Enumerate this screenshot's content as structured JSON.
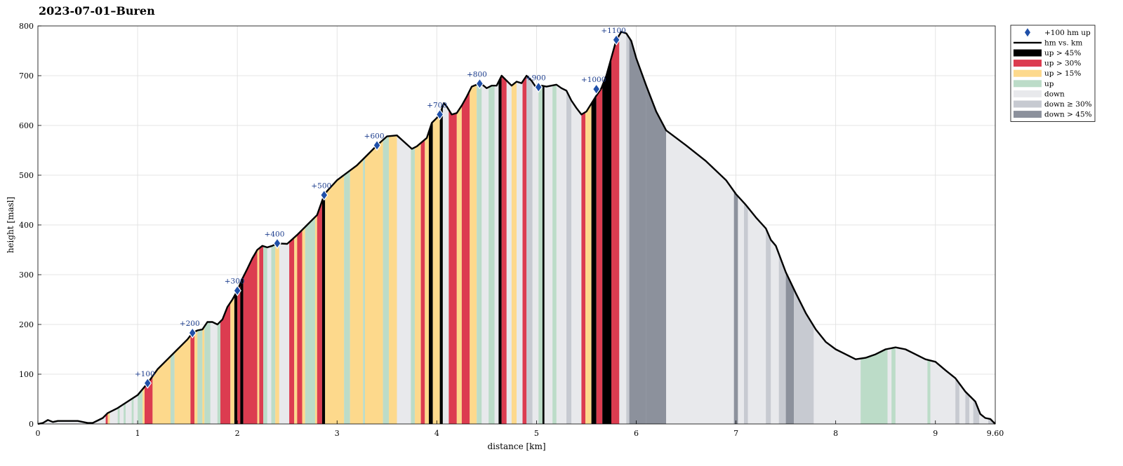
{
  "chart_data": {
    "type": "area",
    "title": "2023-07-01–Buren",
    "xlabel": "distance [km]",
    "ylabel": "height [masl]",
    "xlim": [
      0,
      9.6
    ],
    "ylim": [
      0,
      800
    ],
    "x_ticks": [
      "0",
      "1",
      "2",
      "3",
      "4",
      "5",
      "6",
      "7",
      "8",
      "9",
      "9.60"
    ],
    "x_tick_values": [
      0,
      1,
      2,
      3,
      4,
      5,
      6,
      7,
      8,
      9,
      9.6
    ],
    "y_ticks": [
      "0",
      "100",
      "200",
      "300",
      "400",
      "500",
      "600",
      "700",
      "800"
    ],
    "y_tick_values": [
      0,
      100,
      200,
      300,
      400,
      500,
      600,
      700,
      800
    ],
    "grid": true,
    "legend_position": "outside-top-right",
    "legend": [
      {
        "label": "+100 hm up",
        "kind": "marker",
        "color": "#1f4fa8"
      },
      {
        "label": "hm vs. km",
        "kind": "line",
        "color": "#000000"
      },
      {
        "label": "up > 45%",
        "kind": "patch",
        "color": "#000000"
      },
      {
        "label": "up > 30%",
        "kind": "patch",
        "color": "#dc3c50"
      },
      {
        "label": "up > 15%",
        "kind": "patch",
        "color": "#fdd98c"
      },
      {
        "label": "up",
        "kind": "patch",
        "color": "#bcdcc8"
      },
      {
        "label": "down",
        "kind": "patch",
        "color": "#e8e9ec"
      },
      {
        "label": "down ≥ 30%",
        "kind": "patch",
        "color": "#c7cad1"
      },
      {
        "label": "down > 45%",
        "kind": "patch",
        "color": "#8c919c"
      }
    ],
    "profile": [
      [
        0,
        0
      ],
      [
        0.05,
        2
      ],
      [
        0.1,
        8
      ],
      [
        0.15,
        4
      ],
      [
        0.2,
        6
      ],
      [
        0.3,
        6
      ],
      [
        0.4,
        6
      ],
      [
        0.5,
        2
      ],
      [
        0.55,
        2
      ],
      [
        0.6,
        7
      ],
      [
        0.65,
        12
      ],
      [
        0.7,
        22
      ],
      [
        0.8,
        32
      ],
      [
        0.9,
        45
      ],
      [
        1.0,
        58
      ],
      [
        1.1,
        82
      ],
      [
        1.2,
        110
      ],
      [
        1.3,
        130
      ],
      [
        1.4,
        150
      ],
      [
        1.5,
        170
      ],
      [
        1.55,
        183
      ],
      [
        1.6,
        188
      ],
      [
        1.65,
        190
      ],
      [
        1.7,
        205
      ],
      [
        1.75,
        205
      ],
      [
        1.8,
        200
      ],
      [
        1.85,
        210
      ],
      [
        1.9,
        235
      ],
      [
        1.95,
        250
      ],
      [
        2.0,
        268
      ],
      [
        2.05,
        292
      ],
      [
        2.1,
        312
      ],
      [
        2.15,
        333
      ],
      [
        2.2,
        350
      ],
      [
        2.25,
        358
      ],
      [
        2.3,
        355
      ],
      [
        2.35,
        358
      ],
      [
        2.4,
        363
      ],
      [
        2.5,
        362
      ],
      [
        2.6,
        380
      ],
      [
        2.7,
        400
      ],
      [
        2.8,
        420
      ],
      [
        2.87,
        460
      ],
      [
        2.9,
        468
      ],
      [
        3.0,
        490
      ],
      [
        3.1,
        505
      ],
      [
        3.2,
        520
      ],
      [
        3.3,
        540
      ],
      [
        3.4,
        560
      ],
      [
        3.5,
        578
      ],
      [
        3.6,
        580
      ],
      [
        3.7,
        562
      ],
      [
        3.75,
        553
      ],
      [
        3.8,
        558
      ],
      [
        3.9,
        575
      ],
      [
        3.95,
        605
      ],
      [
        4.0,
        615
      ],
      [
        4.03,
        622
      ],
      [
        4.07,
        645
      ],
      [
        4.1,
        638
      ],
      [
        4.15,
        622
      ],
      [
        4.2,
        625
      ],
      [
        4.25,
        640
      ],
      [
        4.3,
        658
      ],
      [
        4.35,
        678
      ],
      [
        4.4,
        682
      ],
      [
        4.45,
        683
      ],
      [
        4.5,
        675
      ],
      [
        4.55,
        680
      ],
      [
        4.6,
        680
      ],
      [
        4.65,
        700
      ],
      [
        4.7,
        690
      ],
      [
        4.75,
        680
      ],
      [
        4.8,
        688
      ],
      [
        4.85,
        685
      ],
      [
        4.9,
        700
      ],
      [
        4.95,
        690
      ],
      [
        5.0,
        675
      ],
      [
        5.05,
        680
      ],
      [
        5.1,
        678
      ],
      [
        5.15,
        680
      ],
      [
        5.2,
        682
      ],
      [
        5.25,
        675
      ],
      [
        5.3,
        670
      ],
      [
        5.35,
        650
      ],
      [
        5.4,
        635
      ],
      [
        5.45,
        622
      ],
      [
        5.5,
        628
      ],
      [
        5.6,
        660
      ],
      [
        5.65,
        675
      ],
      [
        5.7,
        700
      ],
      [
        5.8,
        772
      ],
      [
        5.85,
        788
      ],
      [
        5.9,
        785
      ],
      [
        5.95,
        770
      ],
      [
        6.0,
        735
      ],
      [
        6.1,
        680
      ],
      [
        6.2,
        628
      ],
      [
        6.3,
        590
      ],
      [
        6.5,
        560
      ],
      [
        6.7,
        528
      ],
      [
        6.9,
        490
      ],
      [
        7.0,
        462
      ],
      [
        7.1,
        440
      ],
      [
        7.2,
        415
      ],
      [
        7.3,
        393
      ],
      [
        7.35,
        370
      ],
      [
        7.4,
        358
      ],
      [
        7.5,
        305
      ],
      [
        7.6,
        263
      ],
      [
        7.7,
        223
      ],
      [
        7.8,
        190
      ],
      [
        7.9,
        165
      ],
      [
        8.0,
        150
      ],
      [
        8.1,
        140
      ],
      [
        8.2,
        130
      ],
      [
        8.3,
        133
      ],
      [
        8.4,
        140
      ],
      [
        8.5,
        150
      ],
      [
        8.6,
        154
      ],
      [
        8.7,
        150
      ],
      [
        8.8,
        140
      ],
      [
        8.9,
        130
      ],
      [
        9.0,
        125
      ],
      [
        9.1,
        108
      ],
      [
        9.2,
        92
      ],
      [
        9.3,
        65
      ],
      [
        9.4,
        45
      ],
      [
        9.45,
        20
      ],
      [
        9.5,
        12
      ],
      [
        9.55,
        10
      ],
      [
        9.6,
        0
      ]
    ],
    "gradient_bands": [
      [
        0.68,
        0.7,
        "up > 30%"
      ],
      [
        0.7,
        0.72,
        "up > 15%"
      ],
      [
        0.8,
        0.82,
        "up"
      ],
      [
        0.86,
        0.88,
        "up"
      ],
      [
        0.94,
        0.96,
        "up"
      ],
      [
        1.0,
        1.05,
        "up"
      ],
      [
        1.05,
        1.07,
        "up > 15%"
      ],
      [
        1.07,
        1.15,
        "up > 30%"
      ],
      [
        1.15,
        1.33,
        "up > 15%"
      ],
      [
        1.33,
        1.37,
        "up"
      ],
      [
        1.37,
        1.53,
        "up > 15%"
      ],
      [
        1.53,
        1.57,
        "up > 30%"
      ],
      [
        1.57,
        1.6,
        "up > 15%"
      ],
      [
        1.6,
        1.65,
        "up"
      ],
      [
        1.65,
        1.67,
        "up > 15%"
      ],
      [
        1.67,
        1.73,
        "up"
      ],
      [
        1.73,
        1.8,
        "down"
      ],
      [
        1.8,
        1.83,
        "up"
      ],
      [
        1.83,
        1.93,
        "up > 30%"
      ],
      [
        1.93,
        1.97,
        "up > 15%"
      ],
      [
        1.97,
        2.0,
        "up > 45%"
      ],
      [
        2.0,
        2.03,
        "up > 30%"
      ],
      [
        2.03,
        2.06,
        "up > 45%"
      ],
      [
        2.06,
        2.2,
        "up > 30%"
      ],
      [
        2.2,
        2.22,
        "up > 15%"
      ],
      [
        2.22,
        2.26,
        "up > 30%"
      ],
      [
        2.26,
        2.3,
        "up"
      ],
      [
        2.3,
        2.34,
        "down"
      ],
      [
        2.34,
        2.38,
        "up"
      ],
      [
        2.38,
        2.42,
        "up > 15%"
      ],
      [
        2.42,
        2.52,
        "down"
      ],
      [
        2.52,
        2.57,
        "up > 30%"
      ],
      [
        2.57,
        2.6,
        "up > 15%"
      ],
      [
        2.6,
        2.65,
        "up > 30%"
      ],
      [
        2.65,
        2.68,
        "up > 15%"
      ],
      [
        2.68,
        2.78,
        "up"
      ],
      [
        2.78,
        2.8,
        "up > 15%"
      ],
      [
        2.8,
        2.85,
        "up > 30%"
      ],
      [
        2.85,
        2.88,
        "up > 45%"
      ],
      [
        2.88,
        3.07,
        "up > 15%"
      ],
      [
        3.07,
        3.13,
        "up"
      ],
      [
        3.13,
        3.26,
        "up > 15%"
      ],
      [
        3.26,
        3.28,
        "up"
      ],
      [
        3.28,
        3.46,
        "up > 15%"
      ],
      [
        3.46,
        3.52,
        "up"
      ],
      [
        3.52,
        3.6,
        "up > 15%"
      ],
      [
        3.6,
        3.74,
        "down"
      ],
      [
        3.74,
        3.78,
        "up"
      ],
      [
        3.78,
        3.84,
        "up > 15%"
      ],
      [
        3.84,
        3.88,
        "up > 30%"
      ],
      [
        3.88,
        3.92,
        "up > 15%"
      ],
      [
        3.92,
        3.96,
        "up > 45%"
      ],
      [
        3.96,
        4.03,
        "up > 15%"
      ],
      [
        4.03,
        4.06,
        "up > 45%"
      ],
      [
        4.06,
        4.12,
        "down"
      ],
      [
        4.12,
        4.2,
        "up > 30%"
      ],
      [
        4.2,
        4.25,
        "up > 15%"
      ],
      [
        4.25,
        4.33,
        "up > 30%"
      ],
      [
        4.33,
        4.4,
        "up > 15%"
      ],
      [
        4.4,
        4.45,
        "up"
      ],
      [
        4.45,
        4.52,
        "down"
      ],
      [
        4.52,
        4.58,
        "up"
      ],
      [
        4.58,
        4.62,
        "down"
      ],
      [
        4.62,
        4.65,
        "up > 45%"
      ],
      [
        4.65,
        4.7,
        "up > 30%"
      ],
      [
        4.7,
        4.75,
        "down"
      ],
      [
        4.75,
        4.8,
        "up > 15%"
      ],
      [
        4.8,
        4.86,
        "down"
      ],
      [
        4.86,
        4.9,
        "up > 30%"
      ],
      [
        4.9,
        4.96,
        "down ≥ 30%"
      ],
      [
        4.96,
        5.02,
        "down"
      ],
      [
        5.02,
        5.06,
        "up"
      ],
      [
        5.06,
        5.08,
        "up > 45%"
      ],
      [
        5.08,
        5.16,
        "down"
      ],
      [
        5.16,
        5.2,
        "up"
      ],
      [
        5.2,
        5.3,
        "down"
      ],
      [
        5.3,
        5.35,
        "down ≥ 30%"
      ],
      [
        5.35,
        5.45,
        "down"
      ],
      [
        5.45,
        5.49,
        "up > 30%"
      ],
      [
        5.49,
        5.55,
        "up > 15%"
      ],
      [
        5.55,
        5.6,
        "up > 45%"
      ],
      [
        5.6,
        5.66,
        "up > 30%"
      ],
      [
        5.66,
        5.75,
        "up > 45%"
      ],
      [
        5.75,
        5.83,
        "up > 30%"
      ],
      [
        5.83,
        5.9,
        "down"
      ],
      [
        5.9,
        5.93,
        "down ≥ 30%"
      ],
      [
        5.93,
        6.1,
        "down > 45%"
      ],
      [
        6.1,
        6.3,
        "down > 45%"
      ],
      [
        6.3,
        6.98,
        "down"
      ],
      [
        6.98,
        7.02,
        "down > 45%"
      ],
      [
        7.02,
        7.08,
        "down"
      ],
      [
        7.08,
        7.12,
        "down ≥ 30%"
      ],
      [
        7.12,
        7.3,
        "down"
      ],
      [
        7.3,
        7.35,
        "down ≥ 30%"
      ],
      [
        7.35,
        7.43,
        "down"
      ],
      [
        7.43,
        7.5,
        "down ≥ 30%"
      ],
      [
        7.5,
        7.58,
        "down > 45%"
      ],
      [
        7.58,
        7.78,
        "down ≥ 30%"
      ],
      [
        7.78,
        8.25,
        "down"
      ],
      [
        8.25,
        8.52,
        "up"
      ],
      [
        8.52,
        8.56,
        "down"
      ],
      [
        8.56,
        8.6,
        "up"
      ],
      [
        8.6,
        8.92,
        "down"
      ],
      [
        8.92,
        8.95,
        "up"
      ],
      [
        8.95,
        9.2,
        "down"
      ],
      [
        9.2,
        9.24,
        "down ≥ 30%"
      ],
      [
        9.24,
        9.3,
        "down"
      ],
      [
        9.3,
        9.34,
        "down ≥ 30%"
      ],
      [
        9.34,
        9.38,
        "down"
      ],
      [
        9.38,
        9.44,
        "down ≥ 30%"
      ],
      [
        9.44,
        9.53,
        "down"
      ],
      [
        9.53,
        9.6,
        "down ≥ 30%"
      ]
    ],
    "milestones": [
      {
        "x": 1.1,
        "y": 82,
        "label": "+100"
      },
      {
        "x": 1.55,
        "y": 183,
        "label": "+200"
      },
      {
        "x": 2.0,
        "y": 268,
        "label": "+300"
      },
      {
        "x": 2.4,
        "y": 363,
        "label": "+400"
      },
      {
        "x": 2.87,
        "y": 460,
        "label": "+500"
      },
      {
        "x": 3.4,
        "y": 560,
        "label": "+600"
      },
      {
        "x": 4.03,
        "y": 622,
        "label": "+700"
      },
      {
        "x": 4.43,
        "y": 684,
        "label": "+800"
      },
      {
        "x": 5.02,
        "y": 677,
        "label": "+900"
      },
      {
        "x": 5.6,
        "y": 673,
        "label": "+1000"
      },
      {
        "x": 5.8,
        "y": 772,
        "label": "+1100"
      }
    ]
  }
}
